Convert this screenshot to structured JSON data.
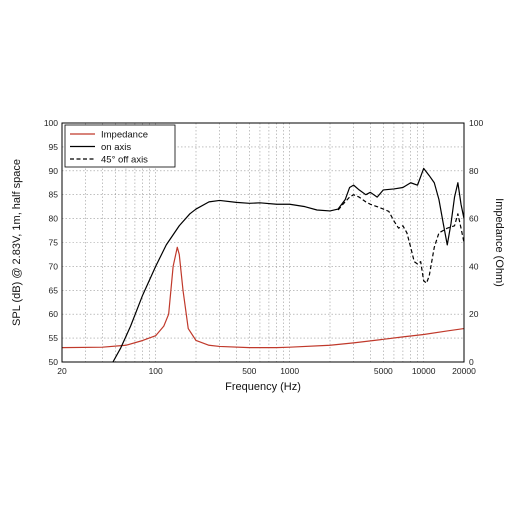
{
  "chart_data": {
    "type": "line",
    "xlabel": "Frequency (Hz)",
    "ylabel": "SPL (dB) @ 2.83V, 1m, half space",
    "y2label": "Impedance (Ohm)",
    "xscale": "log",
    "xlim": [
      20,
      20000
    ],
    "ylim": [
      50,
      100
    ],
    "y2lim": [
      0,
      100
    ],
    "grid": true,
    "legend_position": "top-left",
    "x_ticks": [
      20,
      100,
      500,
      1000,
      5000,
      10000,
      20000
    ],
    "x_tick_labels": [
      "20",
      "100",
      "500",
      "1000",
      "5000",
      "10000",
      "20000"
    ],
    "y_ticks": [
      50,
      55,
      60,
      65,
      70,
      75,
      80,
      85,
      90,
      95,
      100
    ],
    "y_tick_labels": [
      "50",
      "55",
      "60",
      "65",
      "70",
      "75",
      "80",
      "85",
      "90",
      "95",
      "100"
    ],
    "y2_ticks": [
      0,
      20,
      40,
      60,
      80,
      100
    ],
    "y2_tick_labels": [
      "0",
      "20",
      "40",
      "60",
      "80",
      "100"
    ],
    "series": [
      {
        "name": "Impedance",
        "axis": "right",
        "color": "#c0392b",
        "dash": "solid",
        "points": [
          [
            20,
            6
          ],
          [
            40,
            6.2
          ],
          [
            60,
            7
          ],
          [
            80,
            9
          ],
          [
            100,
            11
          ],
          [
            115,
            15
          ],
          [
            125,
            20
          ],
          [
            135,
            40
          ],
          [
            145,
            48
          ],
          [
            150,
            45
          ],
          [
            160,
            30
          ],
          [
            175,
            14
          ],
          [
            200,
            9
          ],
          [
            250,
            7
          ],
          [
            300,
            6.5
          ],
          [
            500,
            6
          ],
          [
            800,
            6
          ],
          [
            1000,
            6.2
          ],
          [
            2000,
            7
          ],
          [
            3000,
            8
          ],
          [
            5000,
            9.5
          ],
          [
            7000,
            10.5
          ],
          [
            10000,
            11.5
          ],
          [
            15000,
            13
          ],
          [
            20000,
            14
          ]
        ]
      },
      {
        "name": "on axis",
        "axis": "left",
        "color": "#000000",
        "dash": "solid",
        "points": [
          [
            48,
            50
          ],
          [
            55,
            53
          ],
          [
            65,
            57.5
          ],
          [
            80,
            64
          ],
          [
            100,
            70
          ],
          [
            120,
            74.5
          ],
          [
            150,
            78.5
          ],
          [
            180,
            81
          ],
          [
            200,
            82
          ],
          [
            250,
            83.5
          ],
          [
            300,
            83.8
          ],
          [
            400,
            83.4
          ],
          [
            500,
            83.2
          ],
          [
            600,
            83.3
          ],
          [
            800,
            83
          ],
          [
            1000,
            83
          ],
          [
            1300,
            82.5
          ],
          [
            1600,
            81.8
          ],
          [
            2000,
            81.6
          ],
          [
            2300,
            82
          ],
          [
            2600,
            84
          ],
          [
            2800,
            86.5
          ],
          [
            3000,
            87
          ],
          [
            3300,
            86
          ],
          [
            3700,
            85
          ],
          [
            4000,
            85.5
          ],
          [
            4500,
            84.5
          ],
          [
            5000,
            86
          ],
          [
            6000,
            86.2
          ],
          [
            7000,
            86.5
          ],
          [
            8000,
            87.5
          ],
          [
            9000,
            87
          ],
          [
            10000,
            90.5
          ],
          [
            11000,
            89
          ],
          [
            12000,
            87.5
          ],
          [
            13000,
            84
          ],
          [
            14000,
            79
          ],
          [
            15000,
            74.5
          ],
          [
            16000,
            79
          ],
          [
            17000,
            84.5
          ],
          [
            18000,
            87.5
          ],
          [
            19000,
            83
          ],
          [
            20000,
            80
          ]
        ]
      },
      {
        "name": "45° off axis",
        "axis": "left",
        "color": "#000000",
        "dash": "dashed",
        "points": [
          [
            2300,
            81.8
          ],
          [
            2500,
            83
          ],
          [
            2800,
            84.5
          ],
          [
            3000,
            85
          ],
          [
            3300,
            84.5
          ],
          [
            3700,
            83.5
          ],
          [
            4000,
            83
          ],
          [
            4500,
            82.5
          ],
          [
            5000,
            82
          ],
          [
            5500,
            81.5
          ],
          [
            6000,
            79.5
          ],
          [
            6500,
            78
          ],
          [
            7000,
            78.5
          ],
          [
            7500,
            77
          ],
          [
            8000,
            74
          ],
          [
            8500,
            71
          ],
          [
            9000,
            70.5
          ],
          [
            9500,
            71
          ],
          [
            10000,
            67
          ],
          [
            10500,
            66.5
          ],
          [
            11000,
            68
          ],
          [
            12000,
            74
          ],
          [
            13000,
            77
          ],
          [
            15000,
            78
          ],
          [
            17000,
            78.5
          ],
          [
            18000,
            81
          ],
          [
            19000,
            78
          ],
          [
            20000,
            75
          ]
        ]
      }
    ]
  }
}
